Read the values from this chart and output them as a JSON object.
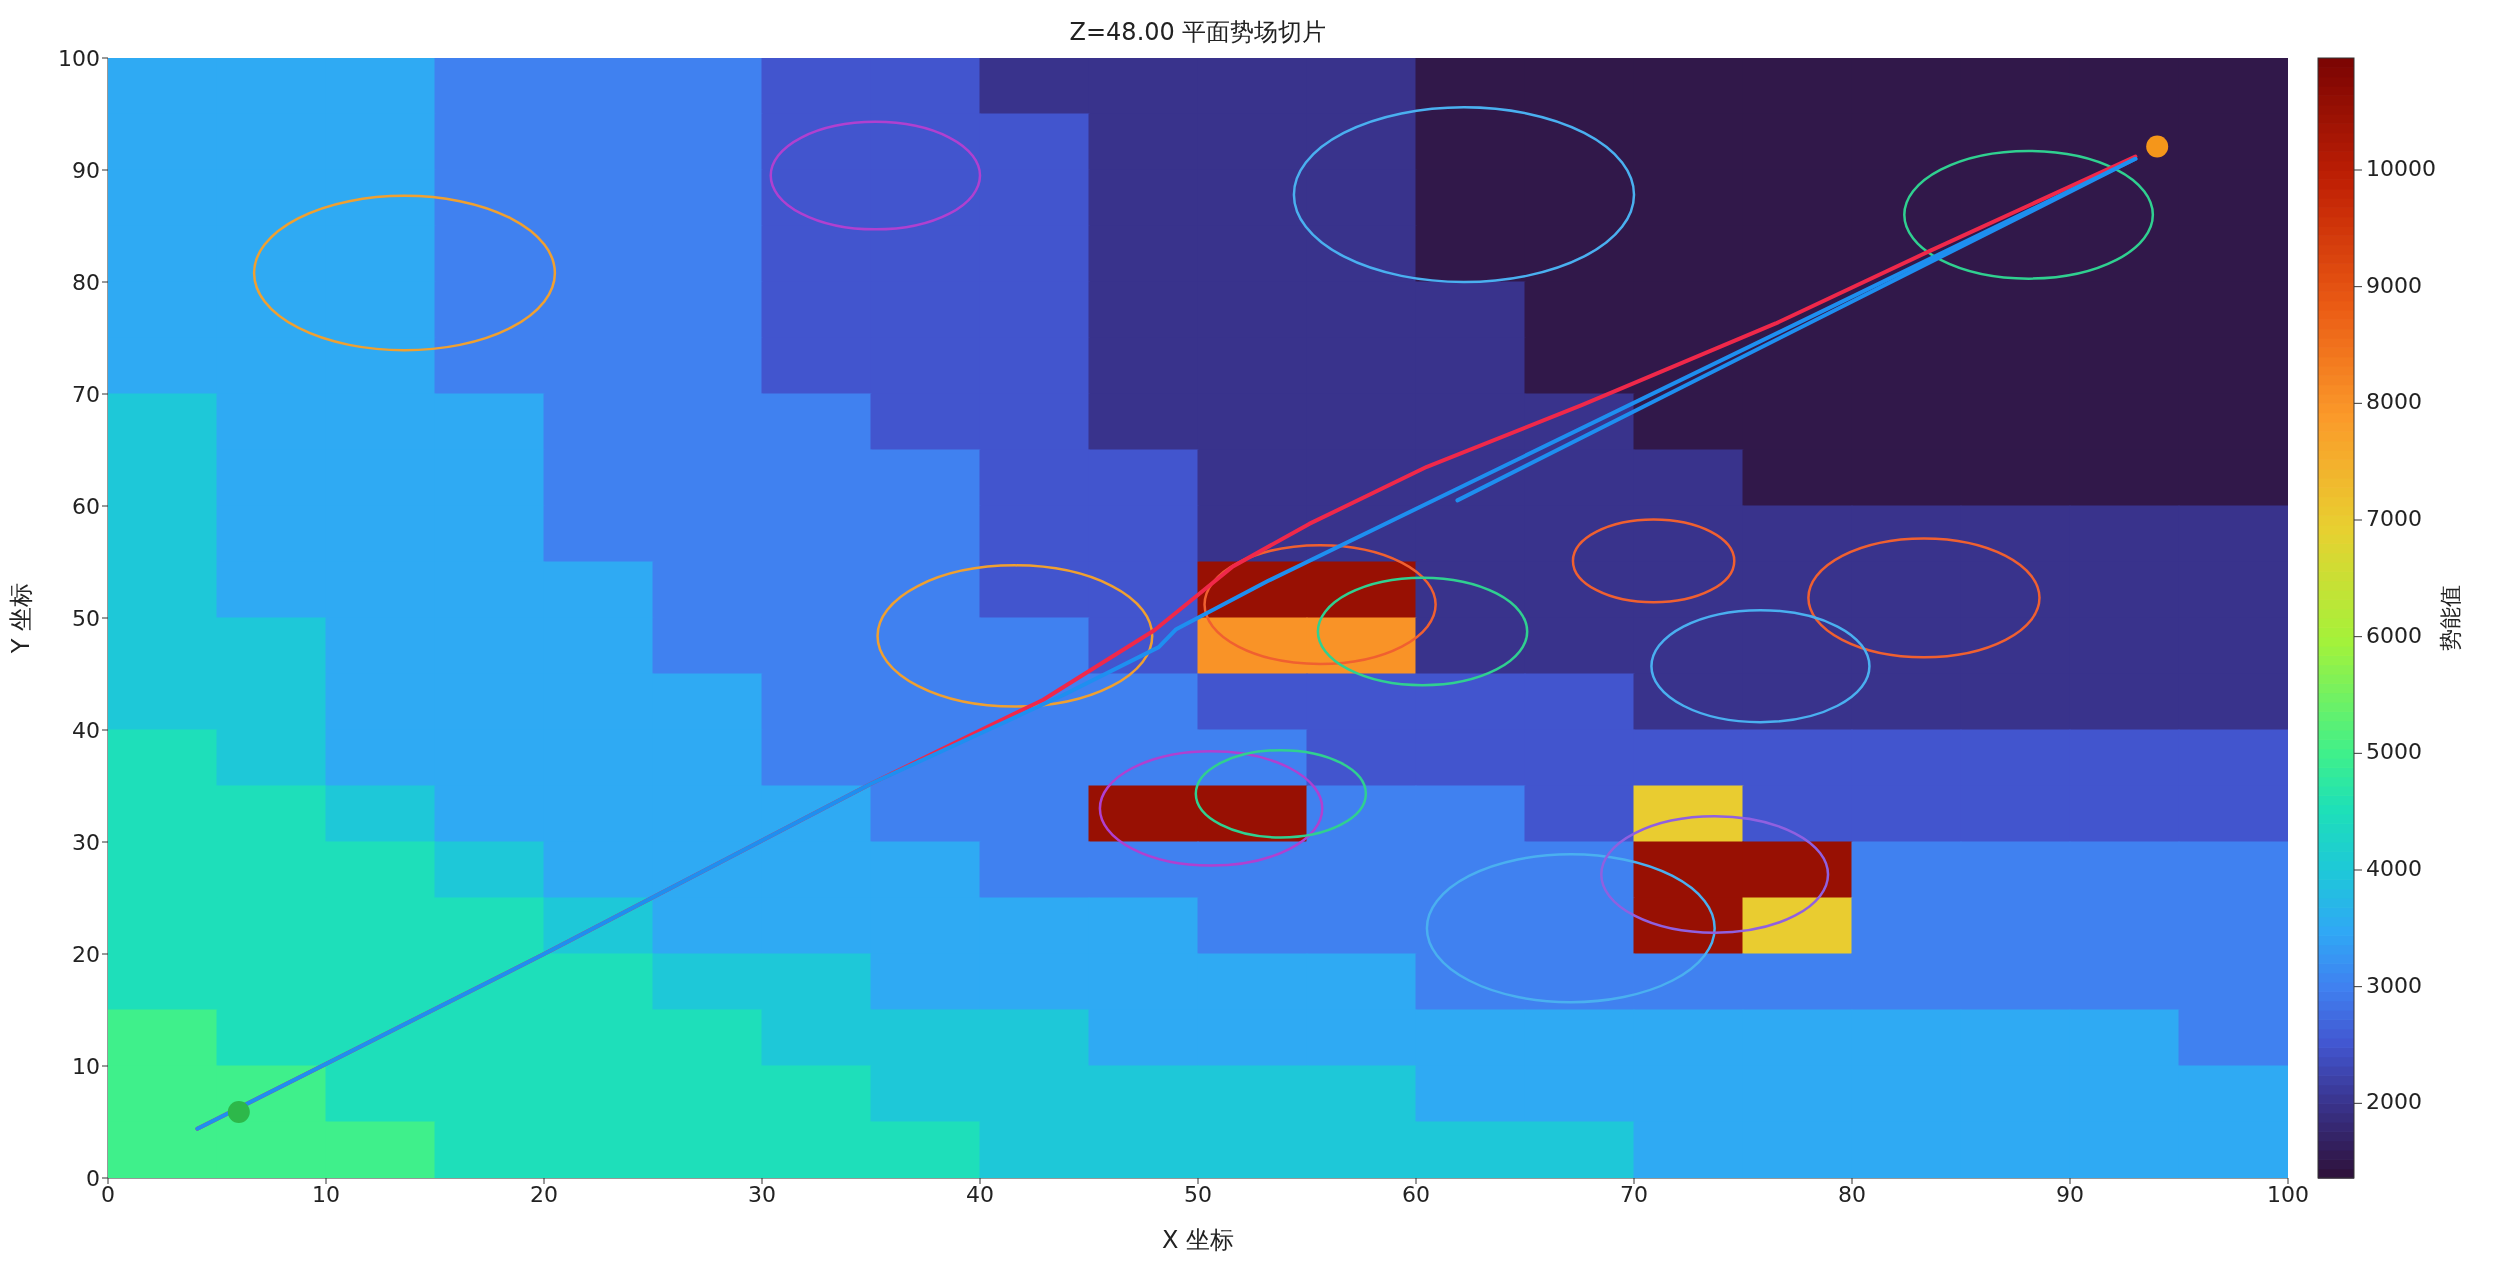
{
  "chart_data": {
    "type": "heatmap",
    "title": "Z=48.00 平面势场切片",
    "xlabel": "X 坐标",
    "ylabel": "Y 坐标",
    "clabel": "势能值",
    "x": [
      2.5,
      7.5,
      12.5,
      17.5,
      22.5,
      27.5,
      32.5,
      37.5,
      42.5,
      47.5,
      52.5,
      57.5,
      62.5,
      67.5,
      72.5,
      77.5,
      82.5,
      87.5,
      92.5,
      97.5
    ],
    "y": [
      97.5,
      92.5,
      87.5,
      82.5,
      77.5,
      72.5,
      67.5,
      62.5,
      57.5,
      52.5,
      47.5,
      42.5,
      37.5,
      32.5,
      27.5,
      22.5,
      17.5,
      12.5,
      7.5,
      2.5
    ],
    "cells": [
      [
        3500,
        3500,
        3500,
        3000,
        3000,
        3000,
        2500,
        2500,
        2000,
        2000,
        2000,
        2000,
        1500,
        1500,
        1500,
        1500,
        1500,
        1500,
        1500,
        1500
      ],
      [
        3500,
        3500,
        3500,
        3000,
        3000,
        3000,
        2500,
        2500,
        2500,
        2000,
        2000,
        2000,
        1500,
        1500,
        1500,
        1500,
        1500,
        1500,
        1500,
        1500
      ],
      [
        3500,
        3500,
        3500,
        3000,
        3000,
        3000,
        2500,
        2500,
        2500,
        2000,
        2000,
        2000,
        1500,
        1500,
        1500,
        1500,
        1500,
        1500,
        1500,
        1500
      ],
      [
        3500,
        3500,
        3500,
        3000,
        3000,
        3000,
        2500,
        2500,
        2500,
        2000,
        2000,
        2000,
        1500,
        1500,
        1500,
        1500,
        1500,
        1500,
        1500,
        1500
      ],
      [
        3500,
        3500,
        3500,
        3000,
        3000,
        3000,
        2500,
        2500,
        2500,
        2000,
        2000,
        2000,
        2000,
        1500,
        1500,
        1500,
        1500,
        1500,
        1500,
        1500
      ],
      [
        3500,
        3500,
        3500,
        3000,
        3000,
        3000,
        2500,
        2500,
        2500,
        2000,
        2000,
        2000,
        2000,
        1500,
        1500,
        1500,
        1500,
        1500,
        1500,
        1500
      ],
      [
        4000,
        3500,
        3500,
        3500,
        3000,
        3000,
        3000,
        2500,
        2500,
        2000,
        2000,
        2000,
        2000,
        2000,
        1500,
        1500,
        1500,
        1500,
        1500,
        1500
      ],
      [
        4000,
        3500,
        3500,
        3500,
        3000,
        3000,
        3000,
        3000,
        2500,
        2500,
        2000,
        2000,
        2000,
        2000,
        2000,
        1500,
        1500,
        1500,
        1500,
        1500
      ],
      [
        4000,
        3500,
        3500,
        3500,
        3000,
        3000,
        3000,
        3000,
        2500,
        2500,
        2000,
        2000,
        2000,
        2000,
        2000,
        2000,
        2000,
        2000,
        2000,
        2000
      ],
      [
        4000,
        3500,
        3500,
        3500,
        3500,
        3000,
        3000,
        3000,
        2500,
        2500,
        10500,
        10500,
        2000,
        2000,
        2000,
        2000,
        2000,
        2000,
        2000,
        2000
      ],
      [
        4000,
        4000,
        3500,
        3500,
        3500,
        3000,
        3000,
        3000,
        3000,
        2500,
        8000,
        8000,
        2000,
        2000,
        2000,
        2000,
        2000,
        2000,
        2000,
        2000
      ],
      [
        4000,
        4000,
        3500,
        3500,
        3500,
        3500,
        3000,
        3000,
        3000,
        3000,
        2500,
        2500,
        2500,
        2500,
        2000,
        2000,
        2000,
        2000,
        2000,
        2000
      ],
      [
        4500,
        4000,
        3500,
        3500,
        3500,
        3500,
        3000,
        3000,
        3000,
        3000,
        3000,
        2500,
        2500,
        2500,
        2500,
        2500,
        2500,
        2500,
        2500,
        2500
      ],
      [
        4500,
        4500,
        4000,
        3500,
        3500,
        3500,
        3500,
        3000,
        3000,
        10500,
        10500,
        3000,
        3000,
        2500,
        7000,
        2500,
        2500,
        2500,
        2500,
        2500
      ],
      [
        4500,
        4500,
        4500,
        4000,
        3500,
        3500,
        3500,
        3500,
        3000,
        3000,
        3000,
        3000,
        3000,
        3000,
        10500,
        10500,
        3000,
        3000,
        3000,
        3000
      ],
      [
        4500,
        4500,
        4500,
        4500,
        4000,
        3500,
        3500,
        3500,
        3500,
        3500,
        3000,
        3000,
        3000,
        3000,
        10500,
        7000,
        3000,
        3000,
        3000,
        3000
      ],
      [
        4500,
        4500,
        4500,
        4500,
        4500,
        4000,
        4000,
        3500,
        3500,
        3500,
        3500,
        3500,
        3000,
        3000,
        3000,
        3000,
        3000,
        3000,
        3000,
        3000
      ],
      [
        5000,
        4500,
        4500,
        4500,
        4500,
        4500,
        4000,
        4000,
        4000,
        3500,
        3500,
        3500,
        3500,
        3500,
        3500,
        3500,
        3500,
        3500,
        3500,
        3000
      ],
      [
        5000,
        5000,
        4500,
        4500,
        4500,
        4500,
        4500,
        4000,
        4000,
        4000,
        4000,
        4000,
        3500,
        3500,
        3500,
        3500,
        3500,
        3500,
        3500,
        3500
      ],
      [
        5000,
        5000,
        5000,
        4500,
        4500,
        4500,
        4500,
        4500,
        4000,
        4000,
        4000,
        4000,
        4000,
        4000,
        3500,
        3500,
        3500,
        3500,
        3500,
        3500
      ]
    ],
    "clim": [
      1360,
      10960
    ],
    "cticks": [
      2000,
      3000,
      4000,
      5000,
      6000,
      7000,
      8000,
      9000,
      10000
    ],
    "xlim": [
      0,
      100
    ],
    "xticks": [
      0,
      10,
      20,
      30,
      40,
      50,
      60,
      70,
      80,
      90,
      100
    ],
    "ylim": [
      0,
      100
    ],
    "yticks": [
      0,
      10,
      20,
      30,
      40,
      50,
      60,
      70,
      80,
      90,
      100
    ],
    "series": [
      {
        "type": "line",
        "color": "#f0284a",
        "x": [
          4.1,
          20,
          35,
          42.9,
          48,
          51.6,
          55.1,
          60.5,
          67.6,
          76.5,
          83.6,
          93
        ],
        "values": [
          4.4,
          20,
          35.2,
          42.7,
          48.9,
          54.6,
          58.4,
          63.5,
          69,
          76.3,
          82.8,
          91.2
        ]
      },
      {
        "type": "line",
        "color": "#1e8ff0",
        "x": [
          4.1,
          20,
          35,
          43.8,
          48.2,
          49,
          53.2,
          93
        ],
        "values": [
          4.4,
          20,
          35.2,
          43.1,
          47.4,
          49,
          53.3,
          91
        ]
      },
      {
        "type": "line",
        "color": "#1e8ff0",
        "x": [
          61.9,
          93
        ],
        "values": [
          60.5,
          91
        ]
      },
      {
        "type": "scatter",
        "color": "#2db84a",
        "marker": "circle",
        "x": [
          6
        ],
        "values": [
          5.9
        ]
      },
      {
        "type": "scatter",
        "color": "#f5961a",
        "marker": "circle",
        "x": [
          94
        ],
        "values": [
          92.1
        ]
      }
    ]
  }
}
